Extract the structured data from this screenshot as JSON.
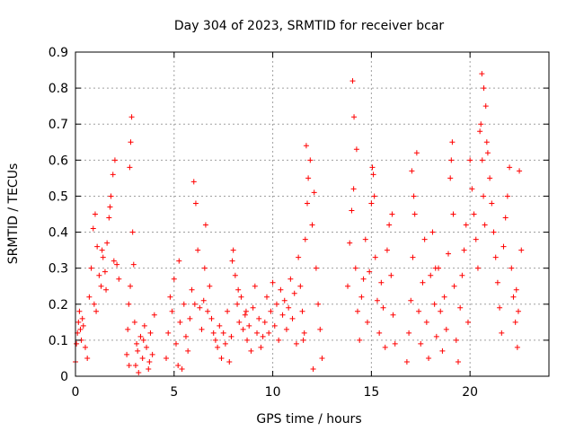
{
  "chart_data": {
    "type": "scatter",
    "title": "Day 304 of 2023, SRMTID for receiver bcar",
    "xlabel": "GPS time / hours",
    "ylabel": "SRMTID / TECUs",
    "xlim": [
      0,
      24
    ],
    "ylim": [
      0,
      0.9
    ],
    "xticks": [
      0,
      5,
      10,
      15,
      20
    ],
    "xtick_labels": [
      "0",
      "5",
      "10",
      "15",
      "20"
    ],
    "yticks": [
      0,
      0.1,
      0.2,
      0.3,
      0.4,
      0.5,
      0.6,
      0.7,
      0.8,
      0.9
    ],
    "ytick_labels": [
      "0",
      "0.1",
      "0.2",
      "0.3",
      "0.4",
      "0.5",
      "0.6",
      "0.7",
      "0.8",
      "0.9"
    ],
    "grid": true,
    "marker": "+",
    "colors": {
      "series": "#ff0000",
      "grid": "#a0a0a0",
      "axis": "#000000"
    },
    "series": [
      {
        "name": "SRMTID",
        "x": [
          0.0,
          0.05,
          0.1,
          0.15,
          0.2,
          0.25,
          0.3,
          0.35,
          0.4,
          0.5,
          0.6,
          0.7,
          0.8,
          0.9,
          1.0,
          1.1,
          1.2,
          1.3,
          1.4,
          1.5,
          1.6,
          1.7,
          1.8,
          1.9,
          2.0,
          2.1,
          2.2,
          0.95,
          1.05,
          1.35,
          1.55,
          1.75,
          1.95,
          2.6,
          2.65,
          2.7,
          2.75,
          2.8,
          2.85,
          2.9,
          2.95,
          3.0,
          3.05,
          3.1,
          3.2,
          3.3,
          3.4,
          3.5,
          3.6,
          3.7,
          3.8,
          3.9,
          4.0,
          2.72,
          2.78,
          3.15,
          3.45,
          3.75,
          4.6,
          4.7,
          4.8,
          4.9,
          5.0,
          5.1,
          5.2,
          5.3,
          5.4,
          5.5,
          5.6,
          5.7,
          5.8,
          5.9,
          6.0,
          6.1,
          6.2,
          6.3,
          6.4,
          6.5,
          6.6,
          6.7,
          6.8,
          6.9,
          7.0,
          7.1,
          6.05,
          6.55,
          5.25,
          7.2,
          7.3,
          7.4,
          7.5,
          7.6,
          7.7,
          7.8,
          7.9,
          8.0,
          8.1,
          8.2,
          8.3,
          8.4,
          8.5,
          8.6,
          8.7,
          8.8,
          8.9,
          9.0,
          9.1,
          9.2,
          9.3,
          9.4,
          9.5,
          7.95,
          8.25,
          8.65,
          9.6,
          9.7,
          9.8,
          9.9,
          10.0,
          10.1,
          10.2,
          10.3,
          10.4,
          10.5,
          10.6,
          10.7,
          10.8,
          10.9,
          11.0,
          11.1,
          11.2,
          11.3,
          11.4,
          11.5,
          11.6,
          11.7,
          11.8,
          11.9,
          12.0,
          12.1,
          12.2,
          12.3,
          12.4,
          12.5,
          11.55,
          11.65,
          11.75,
          12.05,
          13.8,
          13.9,
          14.0,
          14.1,
          14.2,
          14.3,
          14.4,
          14.5,
          14.6,
          14.7,
          14.8,
          14.9,
          15.0,
          15.1,
          15.2,
          15.3,
          15.4,
          15.5,
          15.6,
          15.7,
          15.8,
          15.9,
          16.0,
          16.1,
          16.2,
          14.05,
          14.12,
          14.25,
          15.05,
          15.15,
          16.05,
          16.8,
          16.9,
          17.0,
          17.1,
          17.2,
          17.3,
          17.4,
          17.5,
          17.6,
          17.7,
          17.8,
          17.9,
          18.0,
          18.1,
          18.2,
          18.3,
          18.4,
          18.5,
          18.6,
          18.7,
          18.8,
          18.9,
          19.0,
          19.1,
          19.2,
          19.3,
          19.4,
          19.5,
          19.6,
          19.7,
          19.8,
          19.9,
          17.05,
          17.15,
          18.25,
          19.05,
          19.15,
          20.0,
          20.1,
          20.2,
          20.3,
          20.4,
          20.5,
          20.6,
          20.7,
          20.8,
          20.9,
          21.0,
          21.1,
          21.2,
          21.3,
          21.4,
          21.5,
          21.6,
          21.7,
          21.8,
          21.9,
          22.0,
          22.1,
          22.2,
          22.3,
          22.4,
          22.5,
          22.6,
          20.55,
          20.62,
          20.68,
          20.75,
          20.85,
          22.35,
          22.45
        ],
        "y": [
          0.04,
          0.09,
          0.12,
          0.15,
          0.18,
          0.13,
          0.1,
          0.16,
          0.14,
          0.08,
          0.05,
          0.22,
          0.3,
          0.41,
          0.45,
          0.36,
          0.28,
          0.25,
          0.33,
          0.29,
          0.37,
          0.44,
          0.5,
          0.56,
          0.6,
          0.31,
          0.27,
          0.2,
          0.18,
          0.35,
          0.24,
          0.47,
          0.32,
          0.06,
          0.13,
          0.2,
          0.58,
          0.65,
          0.72,
          0.4,
          0.31,
          0.15,
          0.03,
          0.09,
          0.01,
          0.11,
          0.05,
          0.14,
          0.08,
          0.02,
          0.12,
          0.06,
          0.17,
          0.03,
          0.25,
          0.07,
          0.1,
          0.04,
          0.05,
          0.12,
          0.22,
          0.18,
          0.27,
          0.09,
          0.03,
          0.15,
          0.02,
          0.2,
          0.11,
          0.07,
          0.16,
          0.24,
          0.54,
          0.48,
          0.35,
          0.19,
          0.13,
          0.21,
          0.42,
          0.18,
          0.25,
          0.16,
          0.12,
          0.1,
          0.2,
          0.3,
          0.32,
          0.08,
          0.14,
          0.05,
          0.12,
          0.09,
          0.18,
          0.04,
          0.11,
          0.35,
          0.28,
          0.2,
          0.15,
          0.22,
          0.13,
          0.17,
          0.1,
          0.14,
          0.07,
          0.19,
          0.25,
          0.12,
          0.16,
          0.08,
          0.11,
          0.32,
          0.24,
          0.18,
          0.15,
          0.22,
          0.12,
          0.18,
          0.26,
          0.14,
          0.2,
          0.1,
          0.24,
          0.17,
          0.21,
          0.13,
          0.19,
          0.27,
          0.16,
          0.23,
          0.09,
          0.33,
          0.25,
          0.18,
          0.12,
          0.64,
          0.55,
          0.6,
          0.42,
          0.51,
          0.3,
          0.2,
          0.13,
          0.05,
          0.1,
          0.38,
          0.48,
          0.02,
          0.25,
          0.37,
          0.46,
          0.52,
          0.3,
          0.18,
          0.1,
          0.22,
          0.27,
          0.38,
          0.15,
          0.29,
          0.48,
          0.56,
          0.33,
          0.21,
          0.12,
          0.26,
          0.19,
          0.08,
          0.35,
          0.42,
          0.28,
          0.17,
          0.09,
          0.82,
          0.72,
          0.63,
          0.58,
          0.5,
          0.45,
          0.04,
          0.12,
          0.21,
          0.33,
          0.45,
          0.62,
          0.18,
          0.09,
          0.26,
          0.38,
          0.15,
          0.05,
          0.28,
          0.4,
          0.2,
          0.11,
          0.3,
          0.18,
          0.07,
          0.22,
          0.13,
          0.34,
          0.55,
          0.65,
          0.25,
          0.1,
          0.04,
          0.19,
          0.28,
          0.35,
          0.42,
          0.15,
          0.57,
          0.5,
          0.3,
          0.6,
          0.45,
          0.6,
          0.52,
          0.45,
          0.38,
          0.3,
          0.68,
          0.84,
          0.8,
          0.75,
          0.62,
          0.55,
          0.48,
          0.4,
          0.33,
          0.26,
          0.19,
          0.12,
          0.36,
          0.44,
          0.5,
          0.58,
          0.3,
          0.22,
          0.15,
          0.08,
          0.57,
          0.35,
          0.7,
          0.6,
          0.5,
          0.42,
          0.65,
          0.24,
          0.18
        ]
      }
    ]
  }
}
